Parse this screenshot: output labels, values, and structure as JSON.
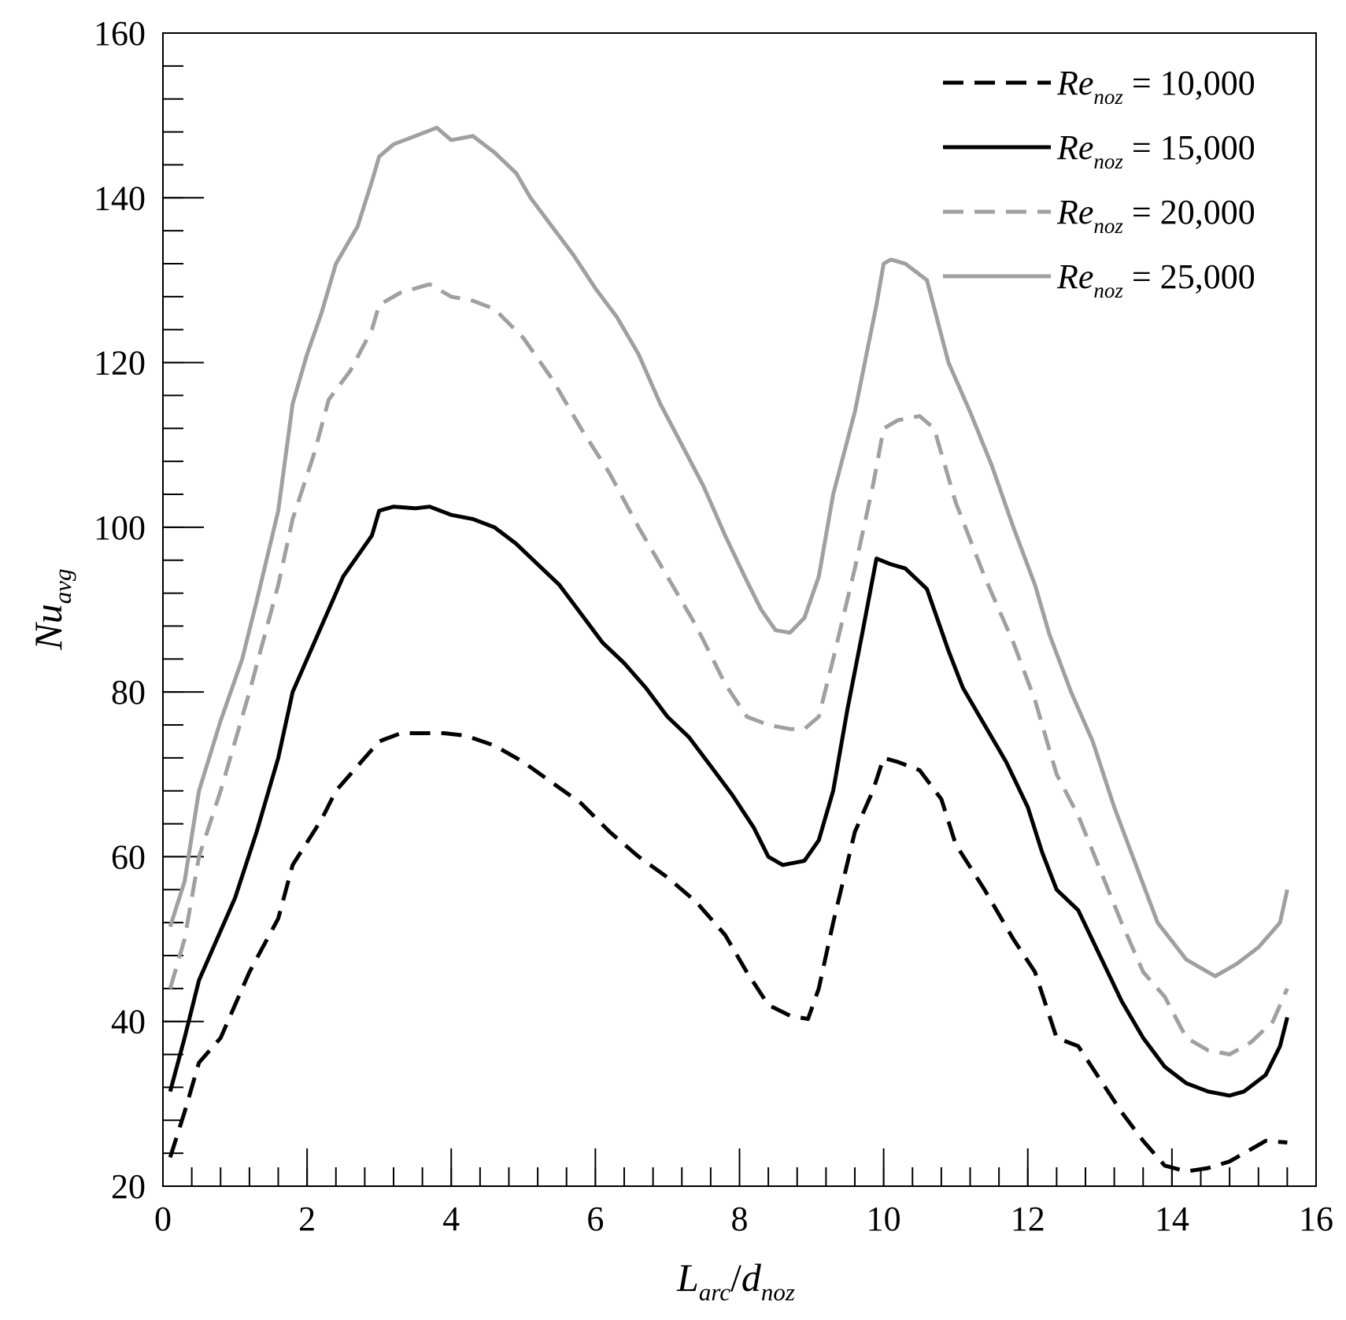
{
  "chart_data": {
    "type": "line",
    "title": "",
    "xlabel": {
      "main": "L",
      "main_sub": "arc",
      "sep": "/",
      "second": "d",
      "second_sub": "noz"
    },
    "ylabel": {
      "main": "Nu",
      "sub": "avg"
    },
    "xlim": [
      0,
      16
    ],
    "ylim": [
      20,
      160
    ],
    "xticks": [
      0,
      2,
      4,
      6,
      8,
      10,
      12,
      14,
      16
    ],
    "xtick_labels": [
      "0",
      "2",
      "4",
      "6",
      "8",
      "10",
      "12",
      "14",
      "16"
    ],
    "yticks": [
      20,
      40,
      60,
      80,
      100,
      120,
      140,
      160
    ],
    "ytick_labels": [
      "20",
      "40",
      "60",
      "80",
      "100",
      "120",
      "140",
      "160"
    ],
    "x_minor_step": 0.4,
    "y_minor_step": 4,
    "grid": false,
    "legend_position": "top-right",
    "series": [
      {
        "name": "Re_noz = 10,000",
        "legend": {
          "main": "Re",
          "sub": "noz",
          "eq": " = 10,000"
        },
        "color": "#000000",
        "style": "dashed",
        "points": [
          [
            0.1,
            23.5
          ],
          [
            0.3,
            29
          ],
          [
            0.5,
            35
          ],
          [
            0.8,
            38
          ],
          [
            1.2,
            46
          ],
          [
            1.6,
            52.5
          ],
          [
            1.8,
            59
          ],
          [
            2.2,
            64.5
          ],
          [
            2.4,
            68
          ],
          [
            2.7,
            71
          ],
          [
            3.0,
            74
          ],
          [
            3.3,
            75
          ],
          [
            3.6,
            75
          ],
          [
            3.9,
            75
          ],
          [
            4.2,
            74.7
          ],
          [
            4.6,
            73.5
          ],
          [
            5.0,
            71.5
          ],
          [
            5.4,
            69
          ],
          [
            5.8,
            66.5
          ],
          [
            6.2,
            63
          ],
          [
            6.6,
            60
          ],
          [
            7.0,
            57.5
          ],
          [
            7.4,
            54.5
          ],
          [
            7.8,
            50.5
          ],
          [
            8.1,
            46
          ],
          [
            8.4,
            42
          ],
          [
            8.7,
            40.7
          ],
          [
            8.95,
            40.3
          ],
          [
            9.1,
            44
          ],
          [
            9.3,
            52
          ],
          [
            9.6,
            63
          ],
          [
            9.85,
            68
          ],
          [
            10.0,
            72
          ],
          [
            10.2,
            71.5
          ],
          [
            10.5,
            70.5
          ],
          [
            10.8,
            67
          ],
          [
            11.0,
            61.5
          ],
          [
            11.4,
            56
          ],
          [
            11.8,
            50
          ],
          [
            12.1,
            46
          ],
          [
            12.4,
            38
          ],
          [
            12.7,
            37
          ],
          [
            13.0,
            33
          ],
          [
            13.3,
            29
          ],
          [
            13.6,
            25.5
          ],
          [
            13.9,
            22.5
          ],
          [
            14.2,
            21.8
          ],
          [
            14.5,
            22.2
          ],
          [
            14.8,
            23
          ],
          [
            15.1,
            24.5
          ],
          [
            15.3,
            25.5
          ],
          [
            15.6,
            25.3
          ]
        ]
      },
      {
        "name": "Re_noz = 15,000",
        "legend": {
          "main": "Re",
          "sub": "noz",
          "eq": " = 15,000"
        },
        "color": "#000000",
        "style": "solid",
        "points": [
          [
            0.1,
            31.5
          ],
          [
            0.3,
            38
          ],
          [
            0.5,
            45
          ],
          [
            0.8,
            51
          ],
          [
            1.0,
            55
          ],
          [
            1.3,
            63
          ],
          [
            1.6,
            72
          ],
          [
            1.8,
            80
          ],
          [
            2.0,
            84
          ],
          [
            2.3,
            90
          ],
          [
            2.5,
            94
          ],
          [
            2.7,
            96.5
          ],
          [
            2.9,
            99
          ],
          [
            3.0,
            102
          ],
          [
            3.2,
            102.5
          ],
          [
            3.5,
            102.3
          ],
          [
            3.7,
            102.5
          ],
          [
            4.0,
            101.5
          ],
          [
            4.3,
            101
          ],
          [
            4.6,
            100
          ],
          [
            4.9,
            98
          ],
          [
            5.2,
            95.5
          ],
          [
            5.5,
            93
          ],
          [
            5.8,
            89.5
          ],
          [
            6.1,
            86
          ],
          [
            6.4,
            83.5
          ],
          [
            6.7,
            80.5
          ],
          [
            7.0,
            77
          ],
          [
            7.3,
            74.5
          ],
          [
            7.6,
            71
          ],
          [
            7.9,
            67.5
          ],
          [
            8.2,
            63.5
          ],
          [
            8.4,
            60
          ],
          [
            8.6,
            59
          ],
          [
            8.9,
            59.5
          ],
          [
            9.1,
            62
          ],
          [
            9.3,
            68
          ],
          [
            9.5,
            78
          ],
          [
            9.7,
            87
          ],
          [
            9.9,
            96.2
          ],
          [
            10.1,
            95.5
          ],
          [
            10.3,
            95
          ],
          [
            10.6,
            92.5
          ],
          [
            10.9,
            85
          ],
          [
            11.1,
            80.5
          ],
          [
            11.4,
            76
          ],
          [
            11.7,
            71.5
          ],
          [
            12.0,
            66
          ],
          [
            12.2,
            60.5
          ],
          [
            12.4,
            56
          ],
          [
            12.7,
            53.5
          ],
          [
            13.0,
            48
          ],
          [
            13.3,
            42.5
          ],
          [
            13.6,
            38
          ],
          [
            13.9,
            34.5
          ],
          [
            14.2,
            32.5
          ],
          [
            14.5,
            31.5
          ],
          [
            14.8,
            31
          ],
          [
            15.0,
            31.5
          ],
          [
            15.3,
            33.5
          ],
          [
            15.5,
            37
          ],
          [
            15.6,
            40.5
          ]
        ]
      },
      {
        "name": "Re_noz = 20,000",
        "legend": {
          "main": "Re",
          "sub": "noz",
          "eq": " = 20,000"
        },
        "color": "#a0a0a0",
        "style": "dashed",
        "points": [
          [
            0.1,
            44
          ],
          [
            0.3,
            50
          ],
          [
            0.5,
            60
          ],
          [
            0.8,
            68
          ],
          [
            1.2,
            80
          ],
          [
            1.6,
            93
          ],
          [
            1.8,
            101
          ],
          [
            2.1,
            109
          ],
          [
            2.3,
            115.5
          ],
          [
            2.6,
            119
          ],
          [
            2.9,
            124
          ],
          [
            3.0,
            127
          ],
          [
            3.3,
            128.5
          ],
          [
            3.7,
            129.5
          ],
          [
            4.0,
            128
          ],
          [
            4.3,
            127.5
          ],
          [
            4.6,
            126.5
          ],
          [
            5.0,
            123
          ],
          [
            5.4,
            118
          ],
          [
            5.8,
            112
          ],
          [
            6.2,
            106.5
          ],
          [
            6.6,
            100
          ],
          [
            7.0,
            94
          ],
          [
            7.4,
            88
          ],
          [
            7.8,
            81
          ],
          [
            8.1,
            77
          ],
          [
            8.4,
            76
          ],
          [
            8.7,
            75.5
          ],
          [
            8.9,
            75.5
          ],
          [
            9.1,
            77
          ],
          [
            9.3,
            84
          ],
          [
            9.6,
            95
          ],
          [
            9.85,
            105
          ],
          [
            10.0,
            112
          ],
          [
            10.2,
            113
          ],
          [
            10.5,
            113.5
          ],
          [
            10.7,
            112
          ],
          [
            11.0,
            103
          ],
          [
            11.4,
            94
          ],
          [
            11.8,
            86
          ],
          [
            12.1,
            79
          ],
          [
            12.4,
            70
          ],
          [
            12.7,
            65
          ],
          [
            13.0,
            58.5
          ],
          [
            13.3,
            52
          ],
          [
            13.6,
            46
          ],
          [
            13.9,
            43
          ],
          [
            14.2,
            38
          ],
          [
            14.5,
            36.5
          ],
          [
            14.8,
            36
          ],
          [
            15.1,
            37.5
          ],
          [
            15.4,
            40
          ],
          [
            15.6,
            44
          ]
        ]
      },
      {
        "name": "Re_noz = 25,000",
        "legend": {
          "main": "Re",
          "sub": "noz",
          "eq": " = 25,000"
        },
        "color": "#a0a0a0",
        "style": "solid",
        "points": [
          [
            0.1,
            51.5
          ],
          [
            0.3,
            57
          ],
          [
            0.5,
            68
          ],
          [
            0.8,
            76.5
          ],
          [
            1.1,
            84
          ],
          [
            1.3,
            91
          ],
          [
            1.6,
            102
          ],
          [
            1.8,
            115
          ],
          [
            2.0,
            121
          ],
          [
            2.2,
            126
          ],
          [
            2.4,
            132
          ],
          [
            2.7,
            136.5
          ],
          [
            2.9,
            142
          ],
          [
            3.0,
            145
          ],
          [
            3.2,
            146.5
          ],
          [
            3.5,
            147.5
          ],
          [
            3.8,
            148.5
          ],
          [
            4.0,
            147
          ],
          [
            4.3,
            147.5
          ],
          [
            4.6,
            145.5
          ],
          [
            4.9,
            143
          ],
          [
            5.1,
            140
          ],
          [
            5.4,
            136.5
          ],
          [
            5.7,
            133
          ],
          [
            6.0,
            129
          ],
          [
            6.3,
            125.5
          ],
          [
            6.6,
            121
          ],
          [
            6.9,
            115
          ],
          [
            7.2,
            110
          ],
          [
            7.5,
            105
          ],
          [
            7.8,
            99
          ],
          [
            8.1,
            93.5
          ],
          [
            8.3,
            90
          ],
          [
            8.5,
            87.5
          ],
          [
            8.7,
            87.2
          ],
          [
            8.9,
            89
          ],
          [
            9.1,
            94
          ],
          [
            9.3,
            104
          ],
          [
            9.6,
            114
          ],
          [
            9.9,
            127
          ],
          [
            10.0,
            132
          ],
          [
            10.1,
            132.5
          ],
          [
            10.3,
            132
          ],
          [
            10.6,
            130
          ],
          [
            10.9,
            120
          ],
          [
            11.2,
            114
          ],
          [
            11.5,
            107.5
          ],
          [
            11.8,
            100
          ],
          [
            12.1,
            93
          ],
          [
            12.3,
            87
          ],
          [
            12.6,
            80
          ],
          [
            12.9,
            74
          ],
          [
            13.2,
            66
          ],
          [
            13.5,
            59
          ],
          [
            13.8,
            52
          ],
          [
            14.2,
            47.5
          ],
          [
            14.6,
            45.5
          ],
          [
            14.9,
            47
          ],
          [
            15.2,
            49
          ],
          [
            15.5,
            52
          ],
          [
            15.6,
            56
          ]
        ]
      }
    ]
  }
}
